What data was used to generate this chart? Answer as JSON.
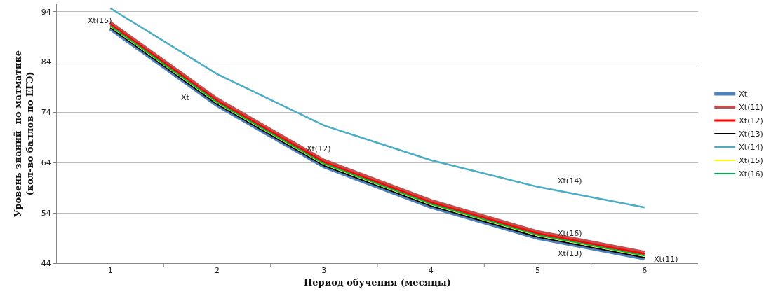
{
  "chart_data": {
    "type": "line",
    "xlabel": "Период обучения (месяцы)",
    "ylabel": "Уровень знаний  по матматике\n(кол-во баллов по ЕГЭ)",
    "categories": [
      "1",
      "2",
      "3",
      "4",
      "5",
      "6"
    ],
    "series": [
      {
        "name": "Xt",
        "color": "#4f81bd",
        "values": [
          90.6,
          75.4,
          63.2,
          55.2,
          49.0,
          44.9
        ]
      },
      {
        "name": "Xt(11)",
        "color": "#c0504d",
        "values": [
          91.9,
          76.7,
          64.5,
          56.5,
          50.3,
          46.2
        ]
      },
      {
        "name": "Xt(12)",
        "color": "#ff0000",
        "values": [
          91.5,
          76.3,
          64.1,
          56.1,
          49.9,
          45.8
        ]
      },
      {
        "name": "Xt(13)",
        "color": "#000000",
        "values": [
          90.8,
          75.6,
          63.4,
          55.4,
          49.2,
          45.1
        ]
      },
      {
        "name": "Xt(14)",
        "color": "#4bacc6",
        "values": [
          94.7,
          81.6,
          71.4,
          64.5,
          59.2,
          55.1
        ]
      },
      {
        "name": "Xt(15)",
        "color": "#ffff00",
        "values": [
          91.1,
          75.9,
          63.7,
          55.7,
          49.5,
          45.4
        ]
      },
      {
        "name": "Xt(16)",
        "color": "#00b050",
        "values": [
          91.2,
          76.0,
          63.8,
          55.8,
          49.6,
          45.5
        ]
      }
    ],
    "ylim": [
      44,
      95.5
    ],
    "yticks": [
      44,
      54,
      64,
      74,
      84,
      94
    ],
    "grid": "y",
    "legend": "right",
    "marker": "none",
    "line_style": "solid",
    "annotations": [
      "Xt(15)",
      "Xt",
      "Xt(12)",
      "Xt(14)",
      "Xt(16)",
      "Xt(13)",
      "Xt(11)"
    ]
  }
}
